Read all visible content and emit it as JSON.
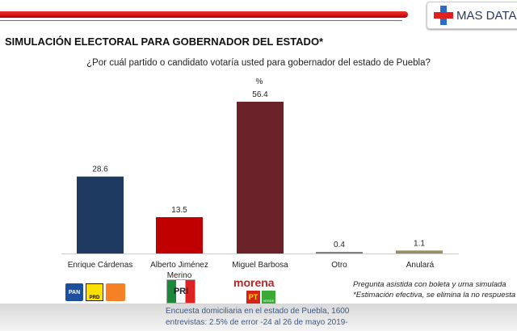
{
  "brand": "MAS DATA",
  "chart_data": {
    "type": "bar",
    "title": "SIMULACIÓN ELECTORAL PARA GOBERNADOR DEL ESTADO*",
    "subtitle": "¿Por cuál partido o candidato votaría usted para gobernador del estado de Puebla?",
    "ylabel": "%",
    "categories": [
      "Enrique Cárdenas",
      "Alberto Jiménez Merino",
      "Miguel Barbosa",
      "Otro",
      "Anulará"
    ],
    "values": [
      28.6,
      13.5,
      56.4,
      0.4,
      1.1
    ],
    "labels": [
      "28.6",
      "13.5",
      "56.4",
      "0.4",
      "1.1"
    ],
    "colors": [
      "#1f3a60",
      "#c00000",
      "#6b2228",
      "#808080",
      "#9c8f5e"
    ],
    "ylim": [
      0,
      60
    ],
    "grid": false
  },
  "party_logos": {
    "cardenas": [
      "PAN",
      "PRD",
      "MC"
    ],
    "jimenez": [
      "PRI"
    ],
    "barbosa": [
      "morena",
      "PT",
      "VERDE"
    ]
  },
  "notes": [
    "Pregunta asistida con boleta y urna simulada",
    "*Estimación efectiva, se elimina la no respuesta"
  ],
  "footer": [
    "Encuesta domiciliaria en el estado de Puebla, 1600",
    "entrevistas: 2.5% de error -24 al 26 de mayo 2019-"
  ]
}
